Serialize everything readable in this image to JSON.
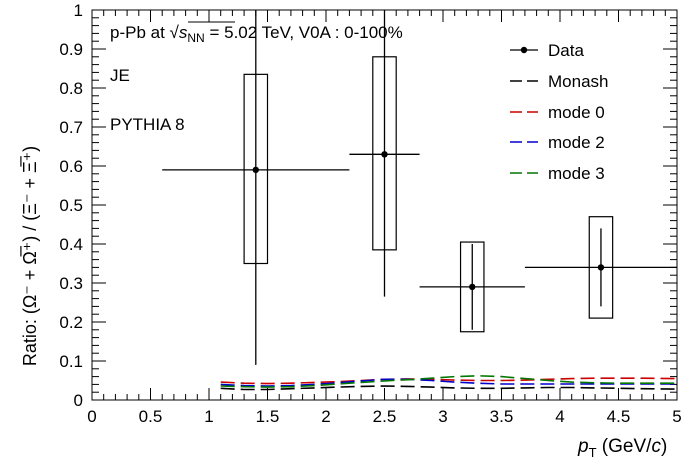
{
  "chart_data": {
    "type": "scatter",
    "title": "",
    "xlabel": {
      "var": "p",
      "sub": "T",
      "unit_pre": " (GeV/",
      "unit_var": "c",
      "unit_post": ")"
    },
    "ylabel": "Ratio: (Ω⁻ + Ω̅⁺) / (Ξ⁻ + Ξ̅⁺)",
    "xlim": [
      0,
      5
    ],
    "ylim": [
      0,
      1
    ],
    "x_ticks": [
      "0",
      "0.5",
      "1",
      "1.5",
      "2",
      "2.5",
      "3",
      "3.5",
      "4",
      "4.5",
      "5"
    ],
    "y_ticks": [
      "0",
      "0.1",
      "0.2",
      "0.3",
      "0.4",
      "0.5",
      "0.6",
      "0.7",
      "0.8",
      "0.9",
      "1"
    ],
    "annotations": {
      "system_prefix": "p-Pb at ",
      "sqrt_var": "s",
      "sqrt_sub": "NN",
      "system_suffix": " = 5.02 TeV,  V0A : 0-100%",
      "jet_tag": "JE",
      "generator": "PYTHIA 8"
    },
    "legend": {
      "placement": "top-right",
      "entries": [
        "Data",
        "Monash",
        "mode 0",
        "mode 2",
        "mode 3"
      ]
    },
    "data": {
      "name": "Data",
      "points": [
        {
          "x": 1.4,
          "y": 0.59,
          "xerr_lo": 0.8,
          "xerr_hi": 0.8,
          "stat_lo": 0.5,
          "stat_hi": 0.41,
          "sys_lo": 0.24,
          "sys_hi": 0.245,
          "sys_halfwidth": 0.1
        },
        {
          "x": 2.5,
          "y": 0.63,
          "xerr_lo": 0.3,
          "xerr_hi": 0.3,
          "stat_lo": 0.365,
          "stat_hi": 0.37,
          "sys_lo": 0.245,
          "sys_hi": 0.25,
          "sys_halfwidth": 0.1
        },
        {
          "x": 3.25,
          "y": 0.29,
          "xerr_lo": 0.45,
          "xerr_hi": 0.45,
          "stat_lo": 0.11,
          "stat_hi": 0.11,
          "sys_lo": 0.115,
          "sys_hi": 0.115,
          "sys_halfwidth": 0.1
        },
        {
          "x": 4.35,
          "y": 0.34,
          "xerr_lo": 0.65,
          "xerr_hi": 0.65,
          "stat_lo": 0.1,
          "stat_hi": 0.1,
          "sys_lo": 0.13,
          "sys_hi": 0.13,
          "sys_halfwidth": 0.1
        }
      ]
    },
    "series": [
      {
        "name": "Monash",
        "color": "#000000",
        "x": [
          1.1,
          1.3,
          1.5,
          1.7,
          1.9,
          2.1,
          2.3,
          2.5,
          2.7,
          2.9,
          3.1,
          3.3,
          3.5,
          3.7,
          3.9,
          4.1,
          4.3,
          4.5,
          4.7,
          5.0
        ],
        "y": [
          0.03,
          0.027,
          0.027,
          0.029,
          0.031,
          0.033,
          0.035,
          0.036,
          0.035,
          0.033,
          0.031,
          0.03,
          0.03,
          0.031,
          0.032,
          0.032,
          0.031,
          0.03,
          0.029,
          0.028
        ]
      },
      {
        "name": "mode 0",
        "color": "#cc0000",
        "x": [
          1.1,
          1.3,
          1.5,
          1.7,
          1.9,
          2.1,
          2.3,
          2.5,
          2.7,
          2.9,
          3.1,
          3.3,
          3.5,
          3.7,
          3.9,
          4.1,
          4.3,
          4.5,
          4.7,
          5.0
        ],
        "y": [
          0.046,
          0.043,
          0.042,
          0.043,
          0.045,
          0.047,
          0.05,
          0.053,
          0.054,
          0.053,
          0.051,
          0.05,
          0.05,
          0.051,
          0.053,
          0.055,
          0.056,
          0.056,
          0.056,
          0.055
        ]
      },
      {
        "name": "mode 2",
        "color": "#0000cc",
        "x": [
          1.1,
          1.3,
          1.5,
          1.7,
          1.9,
          2.1,
          2.3,
          2.5,
          2.7,
          2.9,
          3.1,
          3.3,
          3.5,
          3.7,
          3.9,
          4.1,
          4.3,
          4.5,
          4.7,
          5.0
        ],
        "y": [
          0.04,
          0.037,
          0.036,
          0.037,
          0.04,
          0.044,
          0.049,
          0.053,
          0.053,
          0.05,
          0.046,
          0.043,
          0.041,
          0.041,
          0.041,
          0.041,
          0.041,
          0.041,
          0.041,
          0.041
        ]
      },
      {
        "name": "mode 3",
        "color": "#007700",
        "x": [
          1.1,
          1.3,
          1.5,
          1.7,
          1.9,
          2.1,
          2.3,
          2.5,
          2.7,
          2.9,
          3.1,
          3.3,
          3.5,
          3.7,
          3.9,
          4.1,
          4.3,
          4.5,
          4.7,
          5.0
        ],
        "y": [
          0.036,
          0.034,
          0.033,
          0.034,
          0.037,
          0.041,
          0.045,
          0.049,
          0.052,
          0.056,
          0.06,
          0.062,
          0.06,
          0.055,
          0.05,
          0.046,
          0.044,
          0.043,
          0.043,
          0.043
        ]
      }
    ]
  }
}
